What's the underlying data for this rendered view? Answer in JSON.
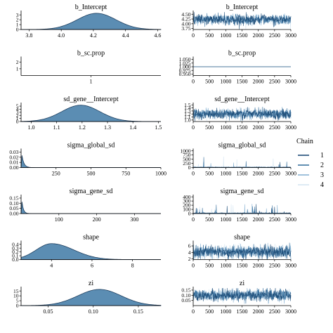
{
  "chart_data": {
    "type": "mcmc-diagnostics",
    "trace_x": [
      0,
      500,
      1000,
      1500,
      2000,
      2500,
      3000
    ],
    "legend": {
      "title": "Chain",
      "placement": "right",
      "entries": [
        {
          "label": "1",
          "color": "#1f4e79"
        },
        {
          "label": "2",
          "color": "#3b73a0"
        },
        {
          "label": "3",
          "color": "#89b3d3"
        },
        {
          "label": "4",
          "color": "#d5e6f2"
        }
      ]
    },
    "density_fill": "#5b8db3",
    "density_stroke": "#1f3f5f",
    "params": [
      {
        "name": "b_Intercept",
        "density": {
          "kind": "normal",
          "mean": 4.22,
          "sd": 0.12,
          "xlim": [
            3.75,
            4.62
          ],
          "xticks": [
            3.8,
            4.0,
            4.2,
            4.4,
            4.6
          ],
          "xtick_labels": [
            "3.8",
            "4.0",
            "4.2",
            "4.4",
            "4.6"
          ],
          "yticks": [
            0,
            1,
            2,
            3
          ],
          "ytick_labels": [
            "0",
            "1",
            "2",
            "3"
          ],
          "ylim": [
            0,
            3.6
          ]
        },
        "trace": {
          "ylim": [
            3.7,
            4.62
          ],
          "yticks": [
            3.75,
            4.0,
            4.25,
            4.5
          ],
          "ytick_labels": [
            "3.75",
            "4.00",
            "4.25",
            "4.50"
          ],
          "center": 4.22,
          "spread": 0.12,
          "spikes": 0
        }
      },
      {
        "name": "b_sc.prop",
        "density": {
          "kind": "flat",
          "xlim": [
            0.9,
            1.1
          ],
          "xticks": [
            1
          ],
          "xtick_labels": [
            "1"
          ],
          "yticks": [
            1,
            2
          ],
          "ytick_labels": [
            "1",
            "2"
          ],
          "ylim": [
            0,
            2.6
          ]
        },
        "trace": {
          "ylim": [
            0.94,
            1.06
          ],
          "yticks": [
            0.95,
            0.975,
            1.0,
            1.025,
            1.05
          ],
          "ytick_labels": [
            "0.950",
            "0.975",
            "1.000",
            "1.025",
            "1.050"
          ],
          "center": 1.0,
          "spread": 0,
          "spikes": 0
        }
      },
      {
        "name": "sd_gene__Intercept",
        "density": {
          "kind": "normal",
          "mean": 1.195,
          "sd": 0.075,
          "xlim": [
            0.96,
            1.51
          ],
          "xticks": [
            1.0,
            1.1,
            1.2,
            1.3,
            1.4,
            1.5
          ],
          "xtick_labels": [
            "1.0",
            "1.1",
            "1.2",
            "1.3",
            "1.4",
            "1.5"
          ],
          "yticks": [
            0,
            1,
            2,
            3,
            4,
            5
          ],
          "ytick_labels": [
            "0",
            "1",
            "2",
            "3",
            "4",
            "5"
          ],
          "ylim": [
            0,
            5.7
          ]
        },
        "trace": {
          "ylim": [
            0.95,
            1.53
          ],
          "yticks": [
            1.0,
            1.1,
            1.2,
            1.3,
            1.4,
            1.5
          ],
          "ytick_labels": [
            "1.0",
            "1.1",
            "1.2",
            "1.3",
            "1.4",
            "1.5"
          ],
          "center": 1.2,
          "spread": 0.075,
          "spikes": 0
        }
      },
      {
        "name": "sigma_global_sd",
        "density": {
          "kind": "exp",
          "rate": 0.07,
          "start": 2,
          "xlim": [
            0,
            1000
          ],
          "xticks": [
            250,
            500,
            750,
            1000
          ],
          "xtick_labels": [
            "250",
            "500",
            "750",
            "1000"
          ],
          "yticks": [
            0,
            0.01,
            0.02,
            0.03
          ],
          "ytick_labels": [
            "0.00",
            "0.01",
            "0.02",
            "0.03"
          ],
          "ylim": [
            0,
            0.034
          ]
        },
        "trace": {
          "ylim": [
            0,
            1050
          ],
          "yticks": [
            0,
            250,
            500,
            750,
            1000
          ],
          "ytick_labels": [
            "0",
            "250",
            "500",
            "750",
            "1000"
          ],
          "center": 15,
          "spread": 10,
          "spikes": 16,
          "spikeMax": 700
        }
      },
      {
        "name": "sigma_gene_sd",
        "density": {
          "kind": "exp",
          "rate": 0.25,
          "start": 1,
          "xlim": [
            0,
            370
          ],
          "xticks": [
            100,
            200,
            300
          ],
          "xtick_labels": [
            "100",
            "200",
            "300"
          ],
          "yticks": [
            0,
            0.05,
            0.1,
            0.15
          ],
          "ytick_labels": [
            "0.00",
            "0.05",
            "0.10",
            "0.15"
          ],
          "ylim": [
            0,
            0.17
          ]
        },
        "trace": {
          "ylim": [
            0,
            420
          ],
          "yticks": [
            0,
            100,
            200,
            300,
            400
          ],
          "ytick_labels": [
            "0",
            "100",
            "200",
            "300",
            "400"
          ],
          "center": 8,
          "spread": 5,
          "spikes": 28,
          "spikeMax": 230
        }
      },
      {
        "name": "shape",
        "density": {
          "kind": "skew",
          "mode": 4.0,
          "sdL": 0.75,
          "sdR": 1.1,
          "xlim": [
            2.5,
            9.4
          ],
          "xticks": [
            4,
            6,
            8
          ],
          "xtick_labels": [
            "4",
            "6",
            "8"
          ],
          "yticks": [
            0,
            0.1,
            0.2,
            0.3,
            0.4
          ],
          "ytick_labels": [
            "0.0",
            "0.1",
            "0.2",
            "0.3",
            "0.4"
          ],
          "ylim": [
            0,
            0.46
          ]
        },
        "trace": {
          "ylim": [
            1.8,
            7.2
          ],
          "yticks": [
            2,
            4,
            6
          ],
          "ytick_labels": [
            "2",
            "4",
            "6"
          ],
          "center": 4.2,
          "spread": 0.9,
          "spikes": 0
        }
      },
      {
        "name": "zi",
        "density": {
          "kind": "normal",
          "mean": 0.107,
          "sd": 0.024,
          "xlim": [
            0.02,
            0.175
          ],
          "xticks": [
            0.05,
            0.1,
            0.15
          ],
          "xtick_labels": [
            "0.05",
            "0.10",
            "0.15"
          ],
          "yticks": [
            0,
            5,
            10,
            15
          ],
          "ytick_labels": [
            "0",
            "5",
            "10",
            "15"
          ],
          "ylim": [
            0,
            18
          ]
        },
        "trace": {
          "ylim": [
            0.0,
            0.17
          ],
          "yticks": [
            0.05,
            0.1,
            0.15
          ],
          "ytick_labels": [
            "0.05",
            "0.10",
            "0.15"
          ],
          "center": 0.1,
          "spread": 0.025,
          "spikes": 0
        }
      }
    ]
  }
}
